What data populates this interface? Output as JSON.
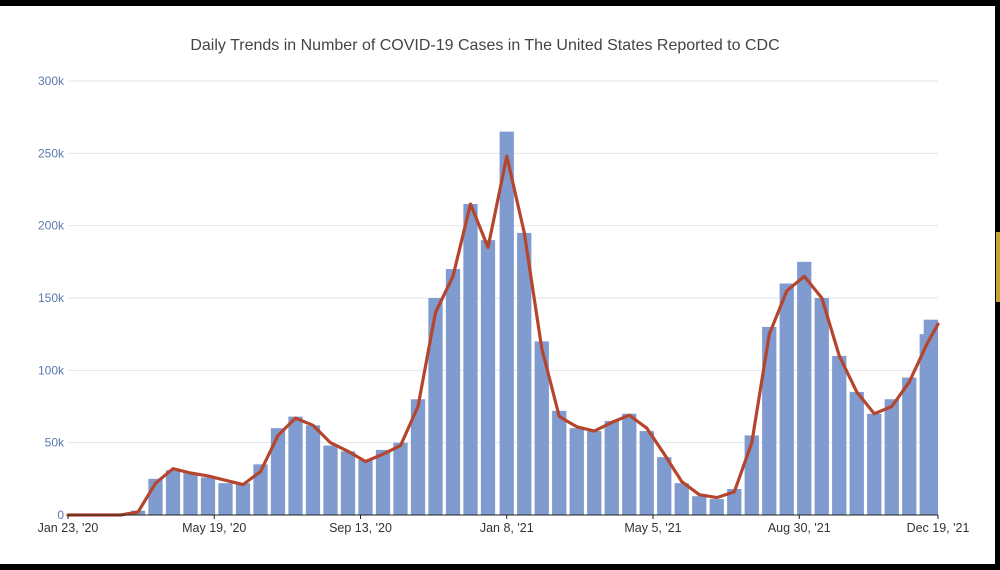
{
  "chart_data": {
    "type": "bar",
    "title": "Daily Trends in Number of COVID-19 Cases in The United States Reported to CDC",
    "ylabel": "",
    "xlabel": "",
    "ylim": [
      0,
      300000
    ],
    "y_ticks": [
      {
        "value": 0,
        "label": "0"
      },
      {
        "value": 50000,
        "label": "50k"
      },
      {
        "value": 100000,
        "label": "100k"
      },
      {
        "value": 150000,
        "label": "150k"
      },
      {
        "value": 200000,
        "label": "200k"
      },
      {
        "value": 250000,
        "label": "250k"
      },
      {
        "value": 300000,
        "label": "300k"
      }
    ],
    "x_ticks": [
      "Jan 23, '20",
      "May 19, '20",
      "Sep 13, '20",
      "Jan 8, '21",
      "May 5, '21",
      "Aug 30, '21",
      "Dec 19, '21"
    ],
    "x_range": [
      "Jan 23, '20",
      "Dec 19, '21"
    ],
    "grid": true,
    "legend": "none",
    "colors": {
      "bars": "#7f9bd0",
      "moving_average": "#b5452d"
    },
    "series": [
      {
        "type": "bar",
        "x": [
          "Jan 23, '20",
          "Feb 6, '20",
          "Feb 20, '20",
          "Mar 5, '20",
          "Mar 19, '20",
          "Apr 2, '20",
          "Apr 16, '20",
          "Apr 30, '20",
          "May 14, '20",
          "May 28, '20",
          "Jun 11, '20",
          "Jun 25, '20",
          "Jul 9, '20",
          "Jul 23, '20",
          "Aug 6, '20",
          "Aug 20, '20",
          "Sep 3, '20",
          "Sep 17, '20",
          "Oct 1, '20",
          "Oct 15, '20",
          "Oct 29, '20",
          "Nov 12, '20",
          "Nov 26, '20",
          "Dec 10, '20",
          "Dec 24, '20",
          "Jan 8, '21",
          "Jan 22, '21",
          "Feb 5, '21",
          "Feb 19, '21",
          "Mar 5, '21",
          "Mar 19, '21",
          "Apr 2, '21",
          "Apr 16, '21",
          "Apr 30, '21",
          "May 14, '21",
          "May 28, '21",
          "Jun 11, '21",
          "Jun 25, '21",
          "Jul 9, '21",
          "Jul 23, '21",
          "Aug 6, '21",
          "Aug 20, '21",
          "Sep 3, '21",
          "Sep 17, '21",
          "Oct 1, '21",
          "Oct 15, '21",
          "Oct 29, '21",
          "Nov 12, '21",
          "Nov 26, '21",
          "Dec 10, '21",
          "Dec 19, '21"
        ],
        "values": [
          0,
          0,
          0,
          0,
          3000,
          25000,
          31000,
          29000,
          26000,
          22000,
          22000,
          35000,
          60000,
          68000,
          62000,
          48000,
          44000,
          38000,
          45000,
          50000,
          80000,
          150000,
          170000,
          215000,
          190000,
          265000,
          195000,
          120000,
          72000,
          60000,
          58000,
          65000,
          70000,
          58000,
          40000,
          22000,
          13000,
          11000,
          18000,
          55000,
          130000,
          160000,
          175000,
          150000,
          110000,
          85000,
          70000,
          80000,
          95000,
          125000,
          135000
        ]
      },
      {
        "type": "line",
        "name": "",
        "x": [
          "Jan 23, '20",
          "Feb 6, '20",
          "Feb 20, '20",
          "Mar 5, '20",
          "Mar 19, '20",
          "Apr 2, '20",
          "Apr 16, '20",
          "Apr 30, '20",
          "May 14, '20",
          "May 28, '20",
          "Jun 11, '20",
          "Jun 25, '20",
          "Jul 9, '20",
          "Jul 23, '20",
          "Aug 6, '20",
          "Aug 20, '20",
          "Sep 3, '20",
          "Sep 17, '20",
          "Oct 1, '20",
          "Oct 15, '20",
          "Oct 29, '20",
          "Nov 12, '20",
          "Nov 26, '20",
          "Dec 10, '20",
          "Dec 24, '20",
          "Jan 8, '21",
          "Jan 22, '21",
          "Feb 5, '21",
          "Feb 19, '21",
          "Mar 5, '21",
          "Mar 19, '21",
          "Apr 2, '21",
          "Apr 16, '21",
          "Apr 30, '21",
          "May 14, '21",
          "May 28, '21",
          "Jun 11, '21",
          "Jun 25, '21",
          "Jul 9, '21",
          "Jul 23, '21",
          "Aug 6, '21",
          "Aug 20, '21",
          "Sep 3, '21",
          "Sep 17, '21",
          "Oct 1, '21",
          "Oct 15, '21",
          "Oct 29, '21",
          "Nov 12, '21",
          "Nov 26, '21",
          "Dec 10, '21",
          "Dec 19, '21"
        ],
        "values": [
          0,
          0,
          0,
          0,
          2000,
          22000,
          32000,
          29000,
          27000,
          24000,
          21000,
          30000,
          55000,
          67000,
          62000,
          50000,
          44000,
          37000,
          42000,
          48000,
          75000,
          140000,
          165000,
          215000,
          185000,
          248000,
          195000,
          115000,
          68000,
          61000,
          58000,
          64000,
          69000,
          60000,
          42000,
          23000,
          14000,
          12000,
          16000,
          50000,
          125000,
          155000,
          165000,
          150000,
          110000,
          85000,
          70000,
          75000,
          92000,
          118000,
          132000
        ]
      }
    ]
  }
}
